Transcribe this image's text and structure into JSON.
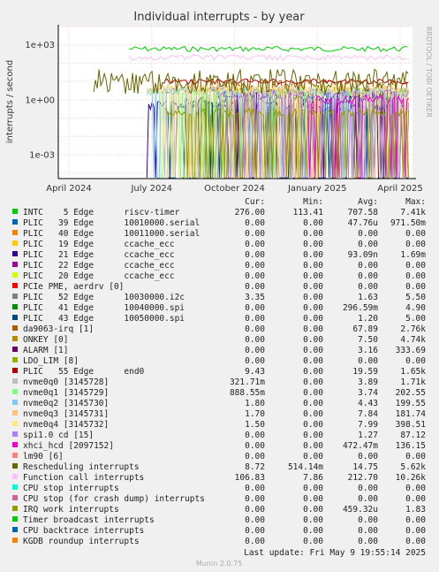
{
  "chart_data": {
    "type": "line",
    "title": "Individual interrupts - by year",
    "ylabel": "interrupts / second",
    "side_label": "RRDTOOL / TOBI OETIKER",
    "y_scale": "log",
    "ylim": [
      5e-05,
      10000
    ],
    "y_ticks": [
      {
        "value": 0.001,
        "label": "1e-03"
      },
      {
        "value": 1,
        "label": "1e+00"
      },
      {
        "value": 1000,
        "label": "1e+03"
      }
    ],
    "x_ticks": [
      "April 2024",
      "July 2024",
      "October 2024",
      "January 2025",
      "April 2025"
    ],
    "columns": [
      "Cur:",
      "Min:",
      "Avg:",
      "Max:"
    ],
    "series": [
      {
        "name": "INTC    5 Edge      riscv-timer",
        "color": "#00cc00",
        "cur": "276.00",
        "min": "113.41",
        "avg": "707.58",
        "max": "7.41k",
        "level": 600,
        "start": 0.2,
        "pattern": "steady"
      },
      {
        "name": "PLIC   39 Edge      10010000.serial",
        "color": "#0066b3",
        "cur": "0.00",
        "min": "0.00",
        "avg": "47.76u",
        "max": "971.50m",
        "level": 0.3,
        "start": 0.3,
        "pattern": "spiky"
      },
      {
        "name": "PLIC   40 Edge      10011000.serial",
        "color": "#ff8000",
        "cur": "0.00",
        "min": "0.00",
        "avg": "0.00",
        "max": "0.00",
        "level": 0,
        "start": 0,
        "pattern": "none"
      },
      {
        "name": "PLIC   19 Edge      ccache_ecc",
        "color": "#ffcc00",
        "cur": "0.00",
        "min": "0.00",
        "avg": "0.00",
        "max": "0.00",
        "level": 0,
        "start": 0,
        "pattern": "none"
      },
      {
        "name": "PLIC   21 Edge      ccache_ecc",
        "color": "#330099",
        "cur": "0.00",
        "min": "0.00",
        "avg": "93.09n",
        "max": "1.69m",
        "level": 0.5,
        "start": 0.25,
        "pattern": "spiky"
      },
      {
        "name": "PLIC   22 Edge      ccache_ecc",
        "color": "#990099",
        "cur": "0.00",
        "min": "0.00",
        "avg": "0.00",
        "max": "0.00",
        "level": 0,
        "start": 0,
        "pattern": "none"
      },
      {
        "name": "PLIC   20 Edge      ccache_ecc",
        "color": "#ccff00",
        "cur": "0.00",
        "min": "0.00",
        "avg": "0.00",
        "max": "0.00",
        "level": 0,
        "start": 0,
        "pattern": "none"
      },
      {
        "name": "PCIe PME, aerdrv [0]",
        "color": "#ff0000",
        "cur": "0.00",
        "min": "0.00",
        "avg": "0.00",
        "max": "0.00",
        "level": 0,
        "start": 0,
        "pattern": "none"
      },
      {
        "name": "PLIC   52 Edge      10030000.i2c",
        "color": "#808080",
        "cur": "3.35",
        "min": "0.00",
        "avg": "1.63",
        "max": "5.50",
        "level": 3,
        "start": 0.3,
        "pattern": "steady"
      },
      {
        "name": "PLIC   41 Edge      10040000.spi",
        "color": "#008f00",
        "cur": "0.00",
        "min": "0.00",
        "avg": "296.59m",
        "max": "4.90",
        "level": 1.5,
        "start": 0.4,
        "pattern": "spiky"
      },
      {
        "name": "PLIC   43 Edge      10050000.spi",
        "color": "#00487d",
        "cur": "0.00",
        "min": "0.00",
        "avg": "1.20",
        "max": "5.00",
        "level": 1.0,
        "start": 0.35,
        "pattern": "spiky"
      },
      {
        "name": "da9063-irq [1]",
        "color": "#b35a00",
        "cur": "0.00",
        "min": "0.00",
        "avg": "67.89",
        "max": "2.76k",
        "level": 8,
        "start": 0.35,
        "pattern": "spiky"
      },
      {
        "name": "ONKEY [0]",
        "color": "#b38f00",
        "cur": "0.00",
        "min": "0.00",
        "avg": "7.50",
        "max": "4.74k",
        "level": 3,
        "start": 0.4,
        "pattern": "spiky"
      },
      {
        "name": "ALARM [1]",
        "color": "#6b006b",
        "cur": "0.00",
        "min": "0.00",
        "avg": "3.16",
        "max": "333.69",
        "level": 2,
        "start": 0.45,
        "pattern": "spiky"
      },
      {
        "name": "LDO_LIM [8]",
        "color": "#8fb300",
        "cur": "0.00",
        "min": "0.00",
        "avg": "0.00",
        "max": "0.00",
        "level": 0,
        "start": 0,
        "pattern": "none"
      },
      {
        "name": "PLIC   55 Edge      end0",
        "color": "#b30000",
        "cur": "9.43",
        "min": "0.00",
        "avg": "19.59",
        "max": "1.65k",
        "level": 10,
        "start": 0.3,
        "pattern": "steady"
      },
      {
        "name": "nvme0q0 [3145728]",
        "color": "#bebebe",
        "cur": "321.71m",
        "min": "0.00",
        "avg": "3.89",
        "max": "1.71k",
        "level": 3,
        "start": 0.25,
        "pattern": "spiky"
      },
      {
        "name": "nvme0q1 [3145729]",
        "color": "#80ff80",
        "cur": "888.55m",
        "min": "0.00",
        "avg": "3.74",
        "max": "202.55",
        "level": 3,
        "start": 0.25,
        "pattern": "spiky"
      },
      {
        "name": "nvme0q2 [3145730]",
        "color": "#80c9ff",
        "cur": "1.80",
        "min": "0.00",
        "avg": "4.43",
        "max": "199.55",
        "level": 3,
        "start": 0.25,
        "pattern": "spiky"
      },
      {
        "name": "nvme0q3 [3145731]",
        "color": "#ffc080",
        "cur": "1.70",
        "min": "0.00",
        "avg": "7.84",
        "max": "181.74",
        "level": 4,
        "start": 0.25,
        "pattern": "spiky"
      },
      {
        "name": "nvme0q4 [3145732]",
        "color": "#ffe680",
        "cur": "1.50",
        "min": "0.00",
        "avg": "7.99",
        "max": "398.51",
        "level": 4,
        "start": 0.25,
        "pattern": "spiky"
      },
      {
        "name": "spi1.0 cd [15]",
        "color": "#aa80ff",
        "cur": "0.00",
        "min": "0.00",
        "avg": "1.27",
        "max": "87.12",
        "level": 2,
        "start": 0.45,
        "pattern": "spiky"
      },
      {
        "name": "xhci_hcd [2097152]",
        "color": "#ee00cc",
        "cur": "0.00",
        "min": "0.00",
        "avg": "472.47m",
        "max": "136.15",
        "level": 1,
        "start": 0.7,
        "pattern": "spiky"
      },
      {
        "name": "lm90 [6]",
        "color": "#ff8080",
        "cur": "0.00",
        "min": "0.00",
        "avg": "0.00",
        "max": "0.00",
        "level": 0,
        "start": 0,
        "pattern": "none"
      },
      {
        "name": "Rescheduling interrupts",
        "color": "#666600",
        "cur": "8.72",
        "min": "514.14m",
        "avg": "14.75",
        "max": "5.62k",
        "level": 10,
        "start": 0.1,
        "pattern": "busy"
      },
      {
        "name": "Function call interrupts",
        "color": "#ffbfff",
        "cur": "106.83",
        "min": "7.86",
        "avg": "212.70",
        "max": "10.26k",
        "level": 200,
        "start": 0.2,
        "pattern": "steady"
      },
      {
        "name": "CPU stop interrupts",
        "color": "#00ffcc",
        "cur": "0.00",
        "min": "0.00",
        "avg": "0.00",
        "max": "0.00",
        "level": 0,
        "start": 0,
        "pattern": "none"
      },
      {
        "name": "CPU stop (for crash dump) interrupts",
        "color": "#cc6699",
        "cur": "0.00",
        "min": "0.00",
        "avg": "0.00",
        "max": "0.00",
        "level": 0,
        "start": 0,
        "pattern": "none"
      },
      {
        "name": "IRQ work interrupts",
        "color": "#999900",
        "cur": "0.00",
        "min": "0.00",
        "avg": "459.32u",
        "max": "1.83",
        "level": 0.2,
        "start": 0.3,
        "pattern": "spiky"
      },
      {
        "name": "Timer broadcast interrupts",
        "color": "#00cc00",
        "cur": "0.00",
        "min": "0.00",
        "avg": "0.00",
        "max": "0.00",
        "level": 0,
        "start": 0,
        "pattern": "none"
      },
      {
        "name": "CPU backtrace interrupts",
        "color": "#0066b3",
        "cur": "0.00",
        "min": "0.00",
        "avg": "0.00",
        "max": "0.00",
        "level": 0,
        "start": 0,
        "pattern": "none"
      },
      {
        "name": "KGDB roundup interrupts",
        "color": "#ff8000",
        "cur": "0.00",
        "min": "0.00",
        "avg": "0.00",
        "max": "0.00",
        "level": 0,
        "start": 0,
        "pattern": "none"
      }
    ],
    "last_update": "Last update:  Fri May  9 19:55:14 2025",
    "footer": "Munin 2.0.75"
  }
}
